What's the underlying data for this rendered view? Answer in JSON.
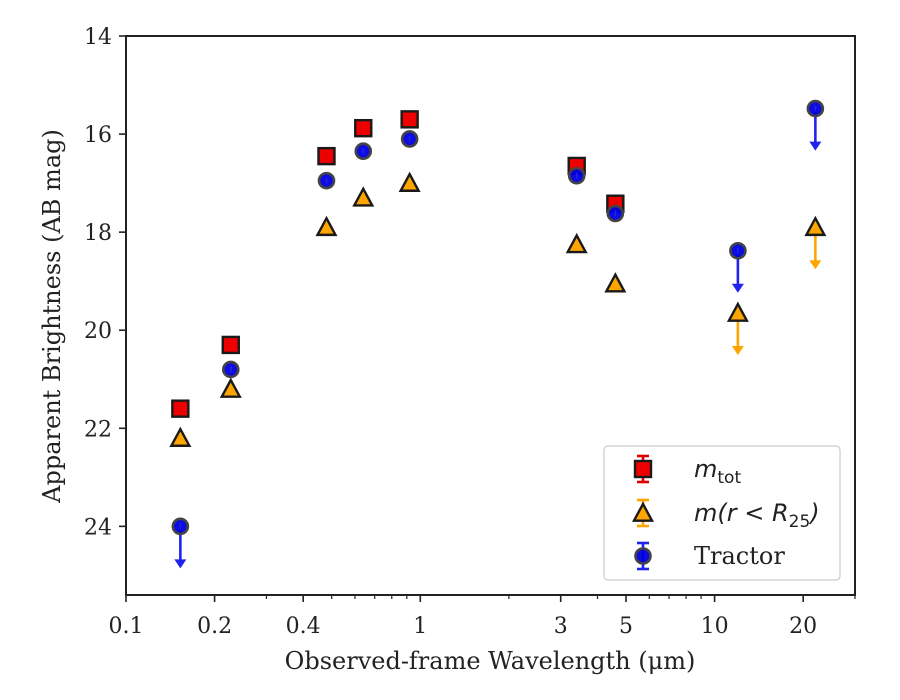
{
  "chart_data": {
    "type": "scatter",
    "xlabel": "Observed-frame Wavelength (μm)",
    "ylabel": "Apparent Brightness (AB mag)",
    "xscale": "log",
    "xlim": [
      0.1,
      30
    ],
    "ylim": [
      25.4,
      14
    ],
    "y_inverted": true,
    "x_ticks": [
      {
        "value": 0.1,
        "label": "0.1"
      },
      {
        "value": 0.2,
        "label": "0.2"
      },
      {
        "value": 0.4,
        "label": "0.4"
      },
      {
        "value": 1,
        "label": "1"
      },
      {
        "value": 3,
        "label": "3"
      },
      {
        "value": 5,
        "label": "5"
      },
      {
        "value": 10,
        "label": "10"
      },
      {
        "value": 20,
        "label": "20"
      }
    ],
    "y_ticks": [
      {
        "value": 14,
        "label": "14"
      },
      {
        "value": 16,
        "label": "16"
      },
      {
        "value": 18,
        "label": "18"
      },
      {
        "value": 20,
        "label": "20"
      },
      {
        "value": 22,
        "label": "22"
      },
      {
        "value": 24,
        "label": "24"
      }
    ],
    "legend_placement": "lower-right",
    "series": [
      {
        "name": "m_tot",
        "legend_label": "m",
        "legend_sub": "tot",
        "marker": "square",
        "fill": "#ee0000",
        "errcolor": "#e00000",
        "points": [
          {
            "x": 0.153,
            "y": 21.6
          },
          {
            "x": 0.227,
            "y": 20.3
          },
          {
            "x": 0.48,
            "y": 16.45
          },
          {
            "x": 0.64,
            "y": 15.88
          },
          {
            "x": 0.92,
            "y": 15.7
          },
          {
            "x": 3.4,
            "y": 16.65
          },
          {
            "x": 4.6,
            "y": 17.42
          }
        ]
      },
      {
        "name": "m(r < R_25)",
        "legend_label": "m(r < R",
        "legend_sub": "25",
        "legend_tail": ")",
        "marker": "triangle",
        "fill": "#ffa500",
        "errcolor": "#ffa500",
        "points": [
          {
            "x": 0.153,
            "y": 22.2
          },
          {
            "x": 0.227,
            "y": 21.2
          },
          {
            "x": 0.48,
            "y": 17.9
          },
          {
            "x": 0.64,
            "y": 17.3
          },
          {
            "x": 0.92,
            "y": 17.0
          },
          {
            "x": 3.4,
            "y": 18.25
          },
          {
            "x": 4.6,
            "y": 19.05
          },
          {
            "x": 12,
            "y": 19.65,
            "upper_limit": true
          },
          {
            "x": 22,
            "y": 17.9,
            "upper_limit": true
          }
        ]
      },
      {
        "name": "Tractor",
        "legend_label": "Tractor",
        "marker": "circle",
        "fill": "#0000dd",
        "errcolor": "#2222ee",
        "points": [
          {
            "x": 0.153,
            "y": 24.0,
            "upper_limit": true
          },
          {
            "x": 0.227,
            "y": 20.8
          },
          {
            "x": 0.48,
            "y": 16.95
          },
          {
            "x": 0.64,
            "y": 16.35
          },
          {
            "x": 0.92,
            "y": 16.1
          },
          {
            "x": 3.4,
            "y": 16.85
          },
          {
            "x": 4.6,
            "y": 17.62
          },
          {
            "x": 12,
            "y": 18.38,
            "upper_limit": true
          },
          {
            "x": 22,
            "y": 15.48,
            "upper_limit": true
          }
        ]
      }
    ]
  }
}
